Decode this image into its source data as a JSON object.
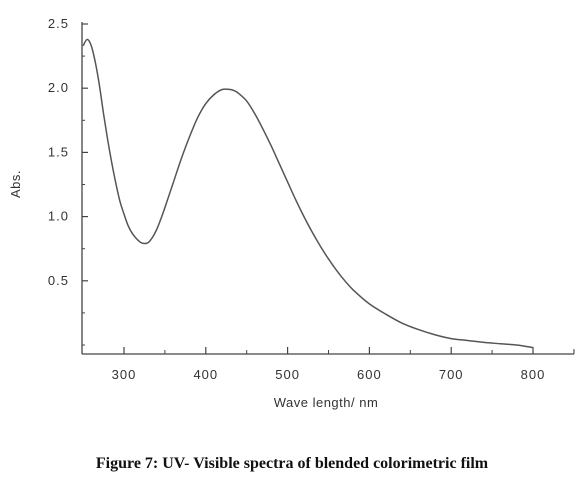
{
  "chart_data": {
    "type": "line",
    "title": "",
    "xlabel": "Wave length/ nm",
    "ylabel": "Abs.",
    "xlim": [
      250,
      800
    ],
    "ylim": [
      0,
      2.5
    ],
    "x_ticks": [
      300,
      400,
      500,
      600,
      700,
      800
    ],
    "x_tick_labels": [
      "300",
      "400",
      "500",
      "600",
      "700",
      "800"
    ],
    "y_ticks": [
      0.5,
      1.0,
      1.5,
      2.0,
      2.5
    ],
    "y_tick_labels": [
      "0.5",
      "1.0",
      "1.5",
      "2.0",
      "2.5"
    ],
    "grid": false,
    "series": [
      {
        "color": "#555555",
        "x": [
          250,
          255,
          260,
          265,
          270,
          275,
          280,
          285,
          290,
          295,
          300,
          305,
          310,
          315,
          320,
          325,
          330,
          335,
          340,
          345,
          350,
          360,
          370,
          380,
          390,
          400,
          410,
          420,
          430,
          435,
          440,
          450,
          460,
          470,
          480,
          490,
          500,
          510,
          520,
          530,
          540,
          550,
          560,
          570,
          580,
          600,
          620,
          640,
          660,
          680,
          700,
          720,
          740,
          760,
          780,
          800
        ],
        "y": [
          2.33,
          2.38,
          2.33,
          2.2,
          2.02,
          1.8,
          1.6,
          1.42,
          1.26,
          1.12,
          1.02,
          0.93,
          0.87,
          0.83,
          0.8,
          0.79,
          0.8,
          0.84,
          0.9,
          0.98,
          1.07,
          1.26,
          1.45,
          1.62,
          1.77,
          1.88,
          1.95,
          1.99,
          1.99,
          1.98,
          1.96,
          1.9,
          1.8,
          1.68,
          1.55,
          1.41,
          1.27,
          1.13,
          1.0,
          0.88,
          0.77,
          0.67,
          0.58,
          0.5,
          0.43,
          0.32,
          0.24,
          0.17,
          0.12,
          0.08,
          0.05,
          0.035,
          0.02,
          0.01,
          0.0,
          -0.02
        ]
      }
    ]
  },
  "caption": "Figure 7: UV- Visible spectra of blended colorimetric film"
}
